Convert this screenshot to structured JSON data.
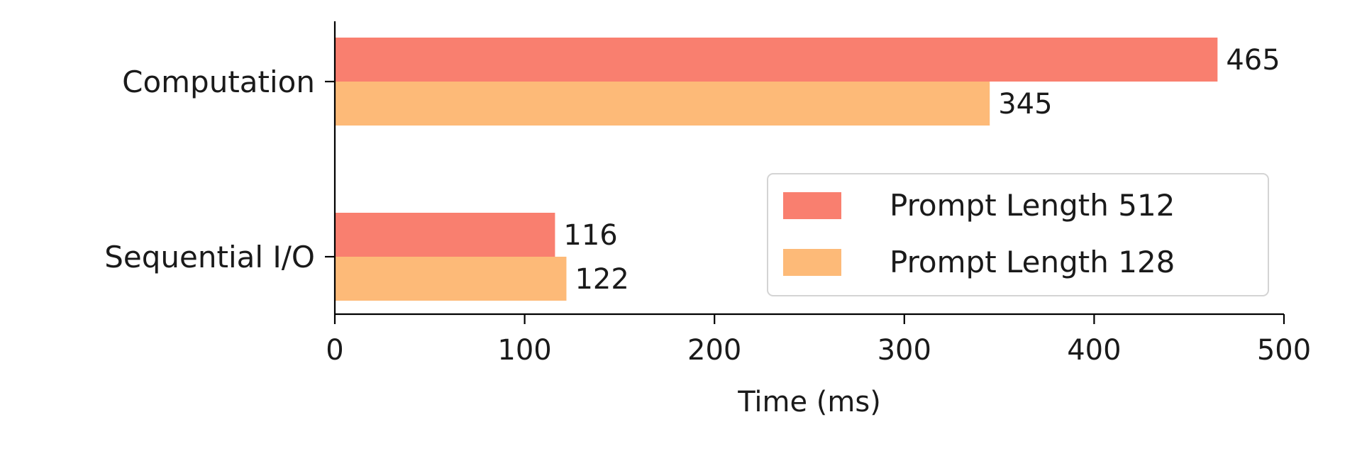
{
  "chart_data": {
    "type": "bar",
    "orientation": "horizontal",
    "categories": [
      "Computation",
      "Sequential I/O"
    ],
    "series": [
      {
        "name": "Prompt Length 512",
        "values": [
          465,
          116
        ],
        "color": "#F97F6F"
      },
      {
        "name": "Prompt Length 128",
        "values": [
          345,
          122
        ],
        "color": "#FDBA78"
      }
    ],
    "xlabel": "Time (ms)",
    "ylabel": "",
    "title": "",
    "xlim": [
      0,
      500
    ],
    "xticks": [
      "0",
      "100",
      "200",
      "300",
      "400",
      "500"
    ],
    "data_labels": [
      [
        "465",
        "116"
      ],
      [
        "345",
        "122"
      ]
    ],
    "legend": {
      "position": "lower-right"
    },
    "grid": false
  }
}
